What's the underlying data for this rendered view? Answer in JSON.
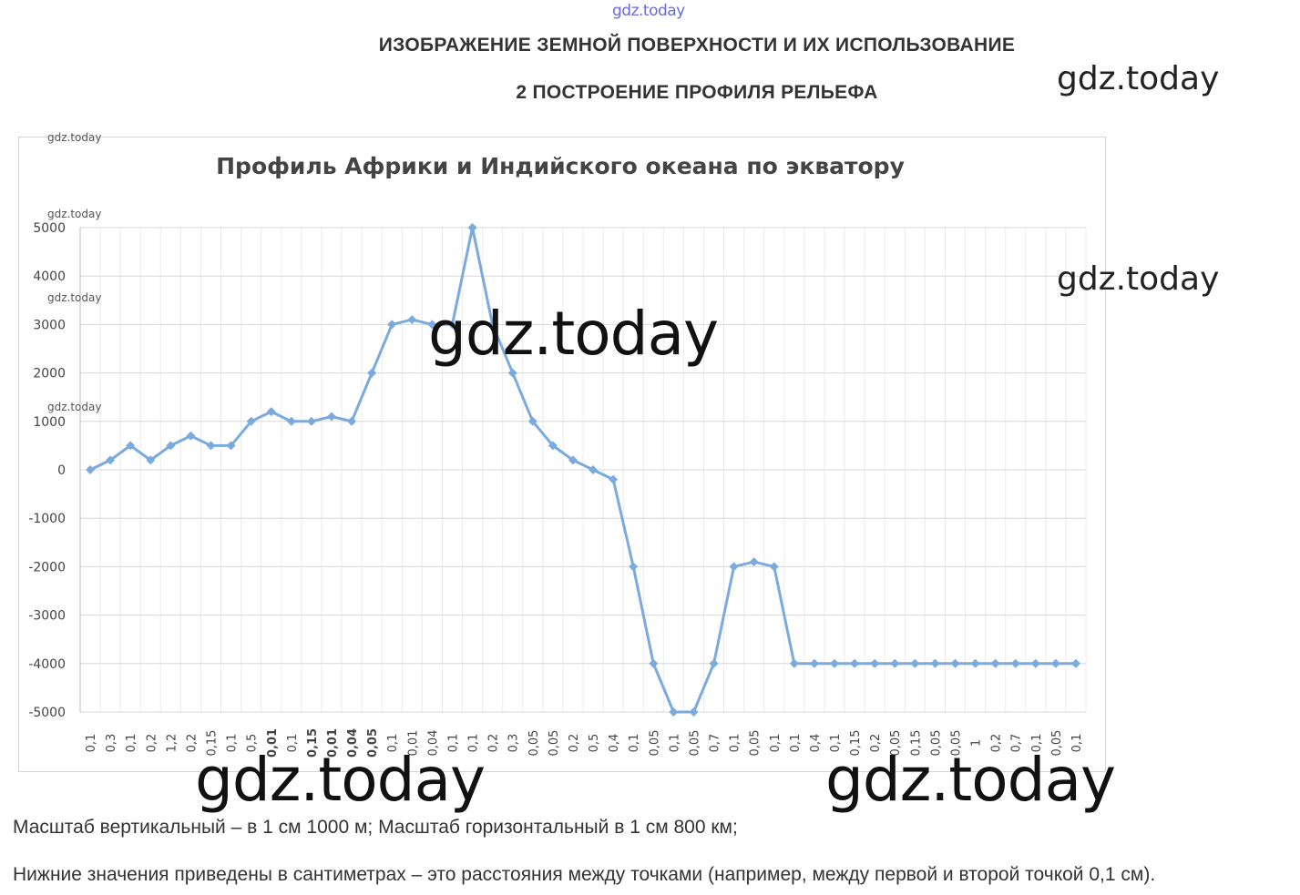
{
  "watermark_text": "gdz.today",
  "header": {
    "title": "ИЗОБРАЖЕНИЕ ЗЕМНОЙ ПОВЕРХНОСТИ И ИХ ИСПОЛЬЗОВАНИЕ",
    "subtitle": "2 ПОСТРОЕНИЕ ПРОФИЛЯ РЕЛЬЕФА"
  },
  "chart_data": {
    "type": "line",
    "title": "Профиль Африки и Индийского океана по экватору",
    "xlabel": "",
    "ylabel": "",
    "ylim": [
      -5000,
      5000
    ],
    "y_ticks": [
      5000,
      4000,
      3000,
      2000,
      1000,
      0,
      -1000,
      -2000,
      -3000,
      -4000,
      -5000
    ],
    "grid": true,
    "legend": "none",
    "series_color": "#7aaade",
    "categories": [
      "0,1",
      "0,3",
      "0,1",
      "0,2",
      "1,2",
      "0,2",
      "0,15",
      "0,1",
      "0,5",
      "0,01",
      "0,1",
      "0,15",
      "0,01",
      "0,04",
      "0,05",
      "0,1",
      "0,01",
      "0,04",
      "0,1",
      "0,1",
      "0,2",
      "0,3",
      "0,05",
      "0,05",
      "0,2",
      "0,5",
      "0,4",
      "0,1",
      "0,05",
      "0,1",
      "0,05",
      "0,7",
      "0,1",
      "0,05",
      "0,1",
      "0,1",
      "0,4",
      "0,1",
      "0,15",
      "0,2",
      "0,05",
      "0,15",
      "0,05",
      "0,05",
      "1",
      "0,2",
      "0,7",
      "0,1",
      "0,05",
      "0,1"
    ],
    "values": [
      0,
      200,
      500,
      200,
      500,
      700,
      500,
      500,
      1000,
      1200,
      1000,
      1000,
      1100,
      1000,
      2000,
      3000,
      3100,
      3000,
      3000,
      5000,
      3000,
      2000,
      1000,
      500,
      200,
      0,
      -200,
      -2000,
      -4000,
      -5000,
      -5000,
      -4000,
      -2000,
      -1900,
      -2000,
      -4000,
      -4000,
      -4000,
      -4000,
      -4000,
      -4000,
      -4000,
      -4000,
      -4000,
      -4000,
      -4000,
      -4000,
      -4000,
      -4000,
      -4000
    ],
    "markers": true
  },
  "footer": {
    "line1": "Масштаб вертикальный – в 1 см 1000 м; Масштаб горизонтальный в 1 см 800 км;",
    "line2": "Нижние значения приведены в сантиметрах – это расстояния между точками (например, между первой и второй точкой 0,1 см)."
  }
}
